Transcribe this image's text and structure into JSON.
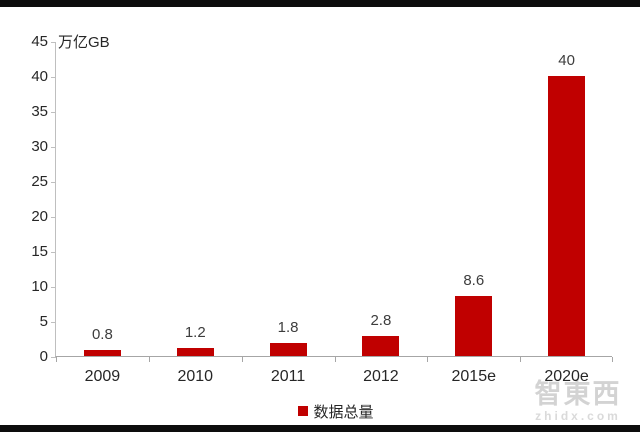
{
  "chart_data": {
    "type": "bar",
    "title": "",
    "xlabel": "",
    "ylabel": "万亿GB",
    "categories": [
      "2009",
      "2010",
      "2011",
      "2012",
      "2015e",
      "2020e"
    ],
    "values": [
      0.8,
      1.2,
      1.8,
      2.8,
      8.6,
      40
    ],
    "value_labels": [
      "0.8",
      "1.2",
      "1.8",
      "2.8",
      "8.6",
      "40"
    ],
    "series_name": "数据总量",
    "ylim": [
      0,
      45
    ],
    "yticks": [
      0,
      5,
      10,
      15,
      20,
      25,
      30,
      35,
      40,
      45
    ],
    "bar_color": "#c00000",
    "axis_line_color": "#bfbfbf",
    "grid": false,
    "legend_position": "bottom"
  },
  "legend": {
    "label": "数据总量"
  },
  "watermark": {
    "cn": "智東西",
    "en": "zhidx.com"
  }
}
